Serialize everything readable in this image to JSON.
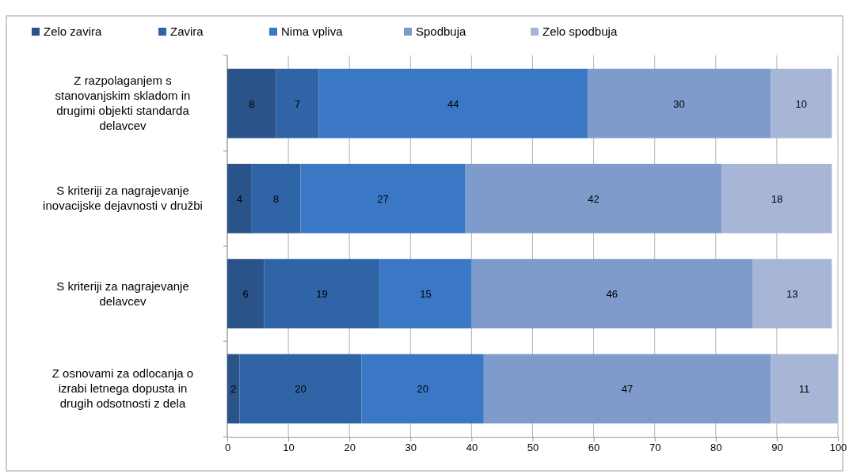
{
  "chart_data": {
    "type": "bar",
    "orientation": "horizontal",
    "stacked": true,
    "categories": [
      "Z razpolaganjem s stanovanjskim skladom in drugimi objekti standarda delavcev",
      "S kriteriji za nagrajevanje inovacijske dejavnosti v družbi",
      "S kriteriji za nagrajevanje delavcev",
      "Z osnovami za odlocanja o izrabi letnega dopusta in drugih odsotnosti z dela"
    ],
    "series": [
      {
        "name": "Zelo zavira",
        "color": "#2a5389",
        "values": [
          8,
          4,
          6,
          2
        ]
      },
      {
        "name": "Zavira",
        "color": "#2f65a6",
        "values": [
          7,
          8,
          19,
          20
        ]
      },
      {
        "name": "Nima vpliva",
        "color": "#3a78c5",
        "values": [
          44,
          27,
          15,
          20
        ]
      },
      {
        "name": "Spodbuja",
        "color": "#7e9bcb",
        "values": [
          30,
          42,
          46,
          47
        ]
      },
      {
        "name": "Zelo spodbuja",
        "color": "#a7b6d6",
        "values": [
          10,
          18,
          13,
          11
        ]
      }
    ],
    "xlim": [
      0,
      100
    ],
    "xticks": [
      0,
      10,
      20,
      30,
      40,
      50,
      60,
      70,
      80,
      90,
      100
    ],
    "grid": "x",
    "legend": "top",
    "data_labels": true
  }
}
